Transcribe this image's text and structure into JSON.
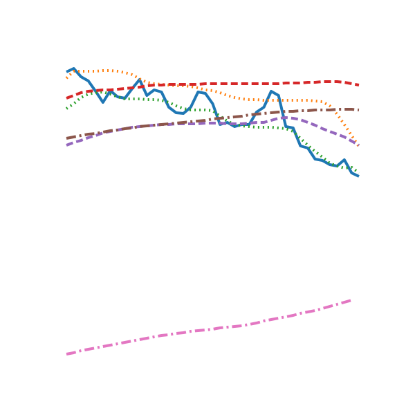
{
  "chart_data": {
    "type": "line",
    "x": [
      0,
      1,
      2,
      3,
      4,
      5,
      6,
      7,
      8,
      9,
      10,
      11,
      12,
      13,
      14,
      15,
      16,
      17,
      18,
      19,
      20,
      21,
      22,
      23,
      24,
      25,
      26,
      27,
      28,
      29,
      30,
      31,
      32,
      33,
      34,
      35,
      36,
      37,
      38,
      39,
      40
    ],
    "xlim": [
      0,
      40
    ],
    "ylim": [
      0,
      600
    ],
    "series": [
      {
        "color": "#1f77b4",
        "linestyle": "solid",
        "values": [
          496,
          501,
          489,
          483,
          468,
          452,
          469,
          460,
          458,
          472,
          485,
          462,
          470,
          467,
          445,
          437,
          436,
          445,
          467,
          465,
          450,
          420,
          423,
          417,
          420,
          420,
          438,
          445,
          468,
          462,
          417,
          415,
          389,
          386,
          370,
          368,
          362,
          360,
          369,
          350,
          345
        ]
      },
      {
        "color": "#ff7f0e",
        "linestyle": "dotted",
        "values": [
          487,
          497,
          497,
          497,
          497,
          498,
          498,
          497,
          495,
          492,
          486,
          481,
          479,
          478,
          477,
          476,
          476,
          475,
          473,
          470,
          469,
          466,
          462,
          459,
          457,
          456,
          456,
          455,
          455,
          455,
          455,
          455,
          455,
          455,
          454,
          453,
          447,
          435,
          420,
          404,
          388
        ]
      },
      {
        "color": "#2ca02c",
        "linestyle": "dotted",
        "values": [
          443,
          450,
          459,
          464,
          466,
          467,
          464,
          460,
          457,
          457,
          457,
          456,
          456,
          455,
          452,
          447,
          443,
          441,
          441,
          441,
          440,
          432,
          425,
          420,
          418,
          417,
          416,
          416,
          416,
          415,
          414,
          410,
          400,
          390,
          381,
          373,
          364,
          360,
          357,
          358,
          350
        ]
      },
      {
        "color": "#d62728",
        "linestyle": "dashed",
        "values": [
          458,
          462,
          466,
          468,
          469,
          470,
          470,
          471,
          472,
          473,
          474,
          476,
          477,
          477,
          478,
          478,
          478,
          478,
          478,
          479,
          479,
          479,
          479,
          479,
          479,
          479,
          479,
          479,
          479,
          479,
          480,
          480,
          480,
          481,
          481,
          482,
          482,
          482,
          481,
          479,
          477
        ]
      },
      {
        "color": "#9467bd",
        "linestyle": "dashed",
        "values": [
          390,
          394,
          397,
          401,
          404,
          408,
          410,
          412,
          414,
          416,
          417,
          418,
          419,
          420,
          420,
          421,
          421,
          421,
          421,
          422,
          422,
          422,
          421,
          421,
          421,
          422,
          423,
          423,
          426,
          429,
          430,
          429,
          427,
          423,
          419,
          414,
          410,
          406,
          402,
          396,
          390
        ]
      },
      {
        "color": "#8c564b",
        "linestyle": "dashdot",
        "values": [
          400,
          402,
          404,
          406,
          407,
          409,
          411,
          412,
          414,
          415,
          417,
          418,
          419,
          420,
          421,
          422,
          423,
          424,
          425,
          426,
          428,
          429,
          430,
          431,
          432,
          434,
          435,
          436,
          437,
          438,
          439,
          439,
          440,
          440,
          441,
          441,
          441,
          442,
          442,
          442,
          441
        ]
      },
      {
        "color": "#e377c2",
        "linestyle": "dashdot",
        "values": [
          88,
          90,
          93,
          95,
          97,
          99,
          101,
          103,
          105,
          107,
          109,
          111,
          113,
          115,
          116,
          118,
          119,
          121,
          122,
          123,
          124,
          126,
          127,
          128,
          129,
          131,
          133,
          136,
          138,
          140,
          142,
          144,
          147,
          149,
          151,
          154,
          157,
          160,
          163,
          166,
          null
        ]
      }
    ]
  }
}
